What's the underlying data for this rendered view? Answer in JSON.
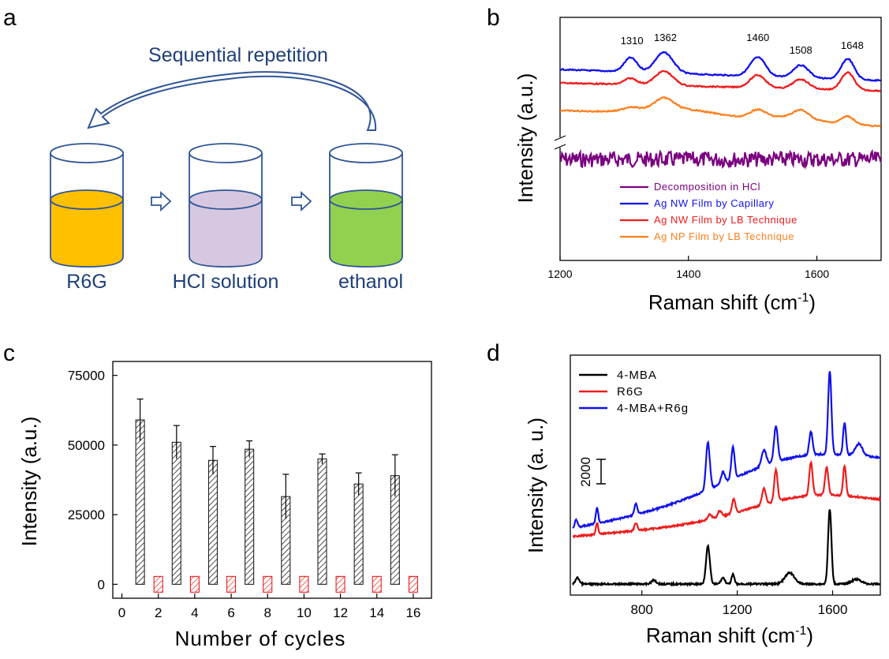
{
  "panels": {
    "a": {
      "letter": "a",
      "arrow_label": "Sequential repetition",
      "beakers": [
        {
          "label": "R6G",
          "liquid_color": "#ffc000"
        },
        {
          "label": "HCl solution",
          "liquid_color": "#d6c8e0"
        },
        {
          "label": "ethanol",
          "liquid_color": "#92d050"
        }
      ]
    },
    "b": {
      "letter": "b"
    },
    "c": {
      "letter": "c"
    },
    "d": {
      "letter": "d"
    }
  },
  "chart_data": [
    {
      "panel": "b",
      "type": "line",
      "xlabel": "Raman shift (cm",
      "xlabel_sup": "-1",
      "xlabel_close": ")",
      "ylabel": "Intensity (a.u.)",
      "xlim": [
        1200,
        1700
      ],
      "xticks": [
        1200,
        1400,
        1600
      ],
      "axis_break": true,
      "peak_labels": [
        {
          "x": 1310,
          "text": "1310"
        },
        {
          "x": 1362,
          "text": "1362"
        },
        {
          "x": 1460,
          "text": "1460"
        },
        {
          "x": 1508,
          "text": "1508"
        },
        {
          "x": 1648,
          "text": "1648"
        }
      ],
      "legend_position": "lower-center",
      "series": [
        {
          "name": "Decomposition in HCl",
          "color": "#7b0080"
        },
        {
          "name": "Ag NW Film by Capillary",
          "color": "#1010ee"
        },
        {
          "name": "Ag NW Film by LB Technique",
          "color": "#ee1c1c"
        },
        {
          "name": "Ag NP Film by LB Technique",
          "color": "#ff7f1e"
        }
      ]
    },
    {
      "panel": "c",
      "type": "bar",
      "xlabel": "Number of cycles",
      "ylabel": "Intensity (a.u.)",
      "xlim": [
        -0.5,
        17
      ],
      "ylim": [
        -5000,
        80000
      ],
      "xticks": [
        0,
        2,
        4,
        6,
        8,
        10,
        12,
        14,
        16
      ],
      "yticks": [
        0,
        25000,
        50000,
        75000
      ],
      "series": [
        {
          "name": "",
          "color": "#333333",
          "x": [
            1,
            3,
            5,
            7,
            9,
            11,
            13,
            15
          ],
          "values": [
            59000,
            51000,
            44500,
            48500,
            31500,
            45000,
            36000,
            39000
          ],
          "errors": [
            7500,
            6000,
            5000,
            3000,
            8000,
            1800,
            4000,
            7500
          ]
        },
        {
          "name": "",
          "color": "#ee1c1c",
          "x": [
            2,
            4,
            6,
            8,
            10,
            12,
            14,
            16
          ],
          "values": [
            0,
            0,
            0,
            0,
            0,
            0,
            0,
            0
          ],
          "errors": [
            0,
            0,
            0,
            0,
            0,
            0,
            0,
            0
          ]
        }
      ]
    },
    {
      "panel": "d",
      "type": "line",
      "xlabel": "Raman shift (cm",
      "xlabel_sup": "-1",
      "xlabel_close": ")",
      "ylabel": "Intensity (a. u.)",
      "xlim": [
        500,
        1800
      ],
      "xticks": [
        800,
        1200,
        1600
      ],
      "scale_bar_label": "2000",
      "scale_bar_value": 2000,
      "legend_position": "top-left",
      "series": [
        {
          "name": "4-MBA",
          "color": "#000000"
        },
        {
          "name": "R6G",
          "color": "#ee1c1c"
        },
        {
          "name": "4-MBA+R6g",
          "color": "#1010ee"
        }
      ]
    }
  ]
}
